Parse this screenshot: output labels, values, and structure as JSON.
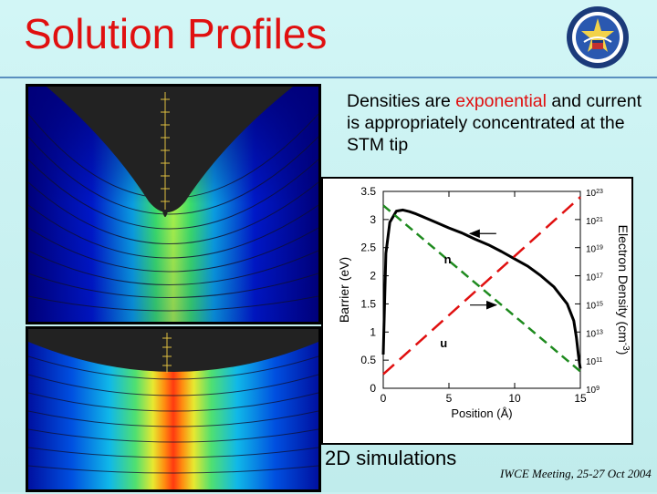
{
  "slide": {
    "title": "Solution Profiles",
    "bullet_prefix": "Densities are ",
    "bullet_highlight": "exponential",
    "bullet_suffix": " and current is appropriately concentrated at the STM tip",
    "caption": "2D simulations",
    "footer": "IWCE Meeting, 25-27 Oct 2004",
    "title_color": "#e01010",
    "highlight_color": "#e01010"
  },
  "chart_data": {
    "type": "line",
    "xlabel": "Position (Å)",
    "ylabel": "Barrier (eV)",
    "y2label": "Electron Density (cm",
    "y2label_sup": "-3",
    "y2label_close": ")",
    "xlim": [
      0,
      15
    ],
    "ylim": [
      0,
      3.5
    ],
    "y2_log_exponent_range": [
      9,
      23
    ],
    "x_ticks": [
      0,
      5,
      10,
      15
    ],
    "y_ticks": [
      0,
      0.5,
      1,
      1.5,
      2,
      2.5,
      3,
      3.5
    ],
    "y_tick_labels": [
      "0",
      "0.5",
      "1",
      "1.5",
      "2",
      "2.5",
      "3",
      "3.5"
    ],
    "x_tick_labels": [
      "0",
      "5",
      "10",
      "15"
    ],
    "y2_ticks_exponent": [
      9,
      11,
      13,
      15,
      17,
      19,
      21,
      23
    ],
    "y2_base_label": "10",
    "y2_tick_sup_labels": [
      "9",
      "11",
      "13",
      "15",
      "17",
      "19",
      "21",
      "23"
    ],
    "annotations": [
      {
        "text": "n",
        "x": 4.9,
        "y": 2.22
      },
      {
        "text": "u",
        "x": 4.6,
        "y": 0.73
      }
    ],
    "arrows": [
      {
        "from": [
          8.6,
          2.75
        ],
        "to": [
          6.6,
          2.75
        ],
        "color": "#000000"
      },
      {
        "from": [
          6.6,
          1.48
        ],
        "to": [
          8.6,
          1.48
        ],
        "color": "#000000"
      }
    ],
    "series": [
      {
        "key": "barrier",
        "axis": "left",
        "color": "#000000",
        "dash": "none",
        "width": 3,
        "x": [
          0,
          0.2,
          0.5,
          1,
          1.5,
          2,
          2.5,
          3,
          4,
          5,
          6,
          7,
          8,
          9,
          10,
          11,
          12,
          13,
          14,
          14.5,
          14.7,
          14.85,
          14.95,
          15
        ],
        "y": [
          0.6,
          2.4,
          2.95,
          3.15,
          3.17,
          3.14,
          3.1,
          3.05,
          2.95,
          2.85,
          2.76,
          2.65,
          2.55,
          2.43,
          2.3,
          2.17,
          2.0,
          1.8,
          1.5,
          1.2,
          0.9,
          0.6,
          0.42,
          0.35
        ]
      },
      {
        "key": "density-green",
        "axis": "right",
        "color": "#1e8a1e",
        "dash": "10,6",
        "width": 2.5,
        "x": [
          0,
          15
        ],
        "y": [
          22,
          10.2
        ]
      },
      {
        "key": "density-red",
        "axis": "right",
        "color": "#e01010",
        "dash": "16,8",
        "width": 2.5,
        "x": [
          0,
          15
        ],
        "y": [
          10.0,
          22.6
        ]
      }
    ]
  }
}
